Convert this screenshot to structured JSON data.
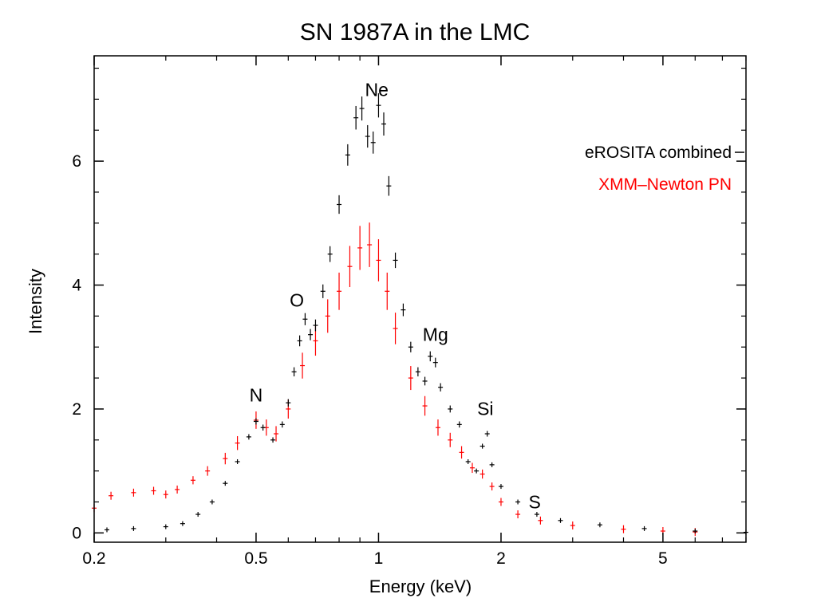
{
  "chart_data": {
    "type": "scatter",
    "title": "SN 1987A in the LMC",
    "xlabel": "Energy (keV)",
    "ylabel": "Intensity",
    "xscale": "log",
    "xlim": [
      0.2,
      8.0
    ],
    "ylim": [
      -0.15,
      7.7
    ],
    "xticks": [
      {
        "value": 0.2,
        "label": "0.2"
      },
      {
        "value": 0.5,
        "label": "0.5"
      },
      {
        "value": 1,
        "label": "1"
      },
      {
        "value": 2,
        "label": "2"
      },
      {
        "value": 5,
        "label": "5"
      }
    ],
    "yticks": [
      {
        "value": 0,
        "label": "0"
      },
      {
        "value": 2,
        "label": "2"
      },
      {
        "value": 4,
        "label": "4"
      },
      {
        "value": 6,
        "label": "6"
      }
    ],
    "grid": false,
    "legend_position": "top-right",
    "annotations": [
      {
        "text": "Ne",
        "x": 0.99,
        "y": 7.05
      },
      {
        "text": "O",
        "x": 0.63,
        "y": 3.65
      },
      {
        "text": "Mg",
        "x": 1.38,
        "y": 3.1
      },
      {
        "text": "N",
        "x": 0.5,
        "y": 2.12
      },
      {
        "text": "Si",
        "x": 1.83,
        "y": 1.9
      },
      {
        "text": "S",
        "x": 2.42,
        "y": 0.4
      }
    ],
    "series": [
      {
        "name": "eROSITA combined",
        "color": "#000000",
        "points": [
          [
            0.215,
            0.05
          ],
          [
            0.25,
            0.07
          ],
          [
            0.3,
            0.1
          ],
          [
            0.33,
            0.15
          ],
          [
            0.36,
            0.3
          ],
          [
            0.39,
            0.5
          ],
          [
            0.42,
            0.8
          ],
          [
            0.45,
            1.15
          ],
          [
            0.48,
            1.55
          ],
          [
            0.5,
            1.8
          ],
          [
            0.52,
            1.7
          ],
          [
            0.55,
            1.5
          ],
          [
            0.58,
            1.75
          ],
          [
            0.6,
            2.1
          ],
          [
            0.62,
            2.6
          ],
          [
            0.64,
            3.1
          ],
          [
            0.66,
            3.45
          ],
          [
            0.68,
            3.2
          ],
          [
            0.7,
            3.35
          ],
          [
            0.73,
            3.9
          ],
          [
            0.76,
            4.5
          ],
          [
            0.8,
            5.3
          ],
          [
            0.84,
            6.1
          ],
          [
            0.88,
            6.7
          ],
          [
            0.91,
            6.85
          ],
          [
            0.94,
            6.4
          ],
          [
            0.97,
            6.3
          ],
          [
            1.0,
            6.9
          ],
          [
            1.03,
            6.6
          ],
          [
            1.06,
            5.6
          ],
          [
            1.1,
            4.4
          ],
          [
            1.15,
            3.6
          ],
          [
            1.2,
            3.0
          ],
          [
            1.25,
            2.6
          ],
          [
            1.3,
            2.45
          ],
          [
            1.34,
            2.85
          ],
          [
            1.38,
            2.75
          ],
          [
            1.42,
            2.35
          ],
          [
            1.5,
            2.0
          ],
          [
            1.58,
            1.75
          ],
          [
            1.66,
            1.15
          ],
          [
            1.74,
            1.0
          ],
          [
            1.8,
            1.4
          ],
          [
            1.85,
            1.6
          ],
          [
            1.9,
            1.1
          ],
          [
            2.0,
            0.75
          ],
          [
            2.2,
            0.5
          ],
          [
            2.45,
            0.3
          ],
          [
            2.8,
            0.2
          ],
          [
            3.5,
            0.13
          ],
          [
            4.5,
            0.07
          ],
          [
            6.0,
            0.03
          ],
          [
            8.0,
            0.01
          ]
        ]
      },
      {
        "name": "XMM–Newton PN",
        "color": "#ff0000",
        "points": [
          [
            0.2,
            0.4
          ],
          [
            0.22,
            0.6
          ],
          [
            0.25,
            0.65
          ],
          [
            0.28,
            0.68
          ],
          [
            0.3,
            0.62
          ],
          [
            0.32,
            0.7
          ],
          [
            0.35,
            0.85
          ],
          [
            0.38,
            1.0
          ],
          [
            0.42,
            1.2
          ],
          [
            0.45,
            1.45
          ],
          [
            0.5,
            1.82
          ],
          [
            0.53,
            1.7
          ],
          [
            0.56,
            1.6
          ],
          [
            0.6,
            2.0
          ],
          [
            0.65,
            2.7
          ],
          [
            0.7,
            3.1
          ],
          [
            0.75,
            3.5
          ],
          [
            0.8,
            3.9
          ],
          [
            0.85,
            4.3
          ],
          [
            0.9,
            4.6
          ],
          [
            0.95,
            4.65
          ],
          [
            1.0,
            4.4
          ],
          [
            1.05,
            3.9
          ],
          [
            1.1,
            3.3
          ],
          [
            1.2,
            2.5
          ],
          [
            1.3,
            2.05
          ],
          [
            1.4,
            1.7
          ],
          [
            1.5,
            1.5
          ],
          [
            1.6,
            1.3
          ],
          [
            1.7,
            1.05
          ],
          [
            1.8,
            0.95
          ],
          [
            1.9,
            0.75
          ],
          [
            2.0,
            0.5
          ],
          [
            2.2,
            0.3
          ],
          [
            2.5,
            0.2
          ],
          [
            3.0,
            0.12
          ],
          [
            4.0,
            0.06
          ],
          [
            5.0,
            0.03
          ],
          [
            6.0,
            0.015
          ]
        ]
      }
    ]
  }
}
